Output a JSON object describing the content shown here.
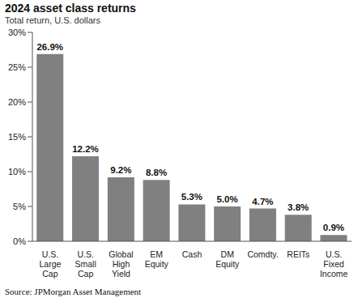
{
  "chart_data": {
    "type": "bar",
    "title": "2024 asset class returns",
    "subtitle": "Total return, U.S. dollars",
    "source": "Source: JPMorgan Asset Management",
    "categories": [
      "U.S. Large Cap",
      "U.S. Small Cap",
      "Global High Yield",
      "EM Equity",
      "Cash",
      "DM Equity",
      "Comdty.",
      "REITs",
      "U.S. Fixed Income"
    ],
    "values": [
      26.9,
      12.2,
      9.2,
      8.8,
      5.3,
      5.0,
      4.7,
      3.8,
      0.9
    ],
    "value_labels": [
      "26.9%",
      "12.2%",
      "9.2%",
      "8.8%",
      "5.3%",
      "5.0%",
      "4.7%",
      "3.8%",
      "0.9%"
    ],
    "data_labels": true,
    "color": "#808080",
    "ylim": [
      0,
      30
    ],
    "yticks": [
      {
        "value": 0,
        "label": "0%"
      },
      {
        "value": 5,
        "label": "5%"
      },
      {
        "value": 10,
        "label": "10%"
      },
      {
        "value": 15,
        "label": "15%"
      },
      {
        "value": 20,
        "label": "20%"
      },
      {
        "value": 25,
        "label": "25%"
      },
      {
        "value": 30,
        "label": "30%"
      }
    ],
    "grid": false
  }
}
